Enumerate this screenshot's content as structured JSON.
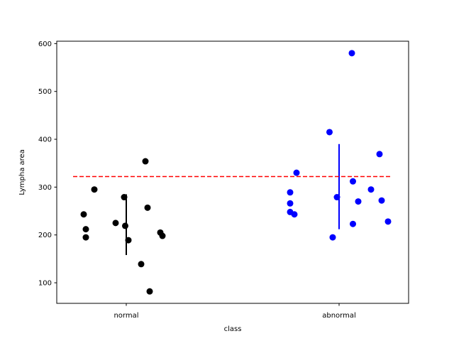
{
  "chart_data": {
    "type": "scatter",
    "xlabel": "class",
    "ylabel": "Lympha area",
    "categories": [
      "normal",
      "abnormal"
    ],
    "ylim": [
      57,
      605
    ],
    "yticks": [
      100,
      200,
      300,
      400,
      500,
      600
    ],
    "grid": false,
    "legend": "none",
    "reference_line": {
      "value": 322,
      "style": "dashed",
      "color": "#ff0000"
    },
    "series": [
      {
        "category": "normal",
        "color": "#000000",
        "points": [
          {
            "x": -0.2,
            "y": 243
          },
          {
            "x": -0.19,
            "y": 212
          },
          {
            "x": -0.19,
            "y": 195
          },
          {
            "x": -0.15,
            "y": 295
          },
          {
            "x": -0.05,
            "y": 225
          },
          {
            "x": -0.01,
            "y": 279
          },
          {
            "x": -0.005,
            "y": 219
          },
          {
            "x": 0.01,
            "y": 189
          },
          {
            "x": 0.07,
            "y": 139
          },
          {
            "x": 0.09,
            "y": 354
          },
          {
            "x": 0.1,
            "y": 257
          },
          {
            "x": 0.11,
            "y": 82
          },
          {
            "x": 0.16,
            "y": 205
          },
          {
            "x": 0.17,
            "y": 198
          }
        ],
        "range": {
          "low": 158,
          "high": 285
        }
      },
      {
        "category": "abnormal",
        "color": "#0000ff",
        "points": [
          {
            "x": -0.23,
            "y": 289
          },
          {
            "x": -0.23,
            "y": 266
          },
          {
            "x": -0.23,
            "y": 248
          },
          {
            "x": -0.21,
            "y": 243
          },
          {
            "x": -0.2,
            "y": 330
          },
          {
            "x": -0.045,
            "y": 415
          },
          {
            "x": -0.03,
            "y": 195
          },
          {
            "x": -0.01,
            "y": 279
          },
          {
            "x": 0.06,
            "y": 580
          },
          {
            "x": 0.065,
            "y": 312
          },
          {
            "x": 0.065,
            "y": 223
          },
          {
            "x": 0.09,
            "y": 270
          },
          {
            "x": 0.15,
            "y": 295
          },
          {
            "x": 0.19,
            "y": 369
          },
          {
            "x": 0.2,
            "y": 272
          },
          {
            "x": 0.23,
            "y": 228
          }
        ],
        "range": {
          "low": 212,
          "high": 390
        }
      }
    ]
  }
}
